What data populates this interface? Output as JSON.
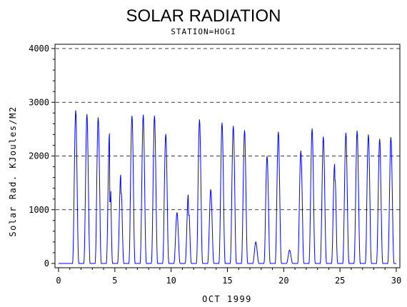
{
  "chart_data": {
    "type": "line",
    "title": "SOLAR RADIATION",
    "subtitle": "STATION=HOGI",
    "xlabel": "OCT 1999",
    "ylabel": "Solar Rad. KJoules/M2",
    "xlim": [
      0,
      30
    ],
    "ylim": [
      0,
      4000
    ],
    "x_ticks": [
      "0",
      "5",
      "10",
      "15",
      "20",
      "25",
      "30"
    ],
    "y_ticks": [
      "0",
      "1000",
      "2000",
      "3000",
      "4000"
    ],
    "grid": "horizontal-dashed",
    "series": [
      {
        "color": "#0000ff",
        "daily_peaks": [
          {
            "day": 1,
            "peak": 2850
          },
          {
            "day": 2,
            "peak": 2780
          },
          {
            "day": 3,
            "peak": 2720
          },
          {
            "day": 4,
            "peak": 2420,
            "secondary": 1150
          },
          {
            "day": 5,
            "peak": 1650,
            "secondary": 1300
          },
          {
            "day": 6,
            "peak": 2750
          },
          {
            "day": 7,
            "peak": 2770
          },
          {
            "day": 8,
            "peak": 2750
          },
          {
            "day": 9,
            "peak": 2410
          },
          {
            "day": 10,
            "peak": 950
          },
          {
            "day": 11,
            "peak": 1280,
            "secondary": 900
          },
          {
            "day": 12,
            "peak": 2680
          },
          {
            "day": 13,
            "peak": 1380
          },
          {
            "day": 14,
            "peak": 2620
          },
          {
            "day": 15,
            "peak": 2560
          },
          {
            "day": 16,
            "peak": 2480
          },
          {
            "day": 17,
            "peak": 400
          },
          {
            "day": 18,
            "peak": 2000
          },
          {
            "day": 19,
            "peak": 2450
          },
          {
            "day": 20,
            "peak": 250
          },
          {
            "day": 21,
            "peak": 2100
          },
          {
            "day": 22,
            "peak": 2510
          },
          {
            "day": 23,
            "peak": 2360
          },
          {
            "day": 24,
            "peak": 1850,
            "secondary": 1550
          },
          {
            "day": 25,
            "peak": 2430
          },
          {
            "day": 26,
            "peak": 2470
          },
          {
            "day": 27,
            "peak": 2400
          },
          {
            "day": 28,
            "peak": 2320
          },
          {
            "day": 29,
            "peak": 2350
          }
        ]
      }
    ]
  }
}
